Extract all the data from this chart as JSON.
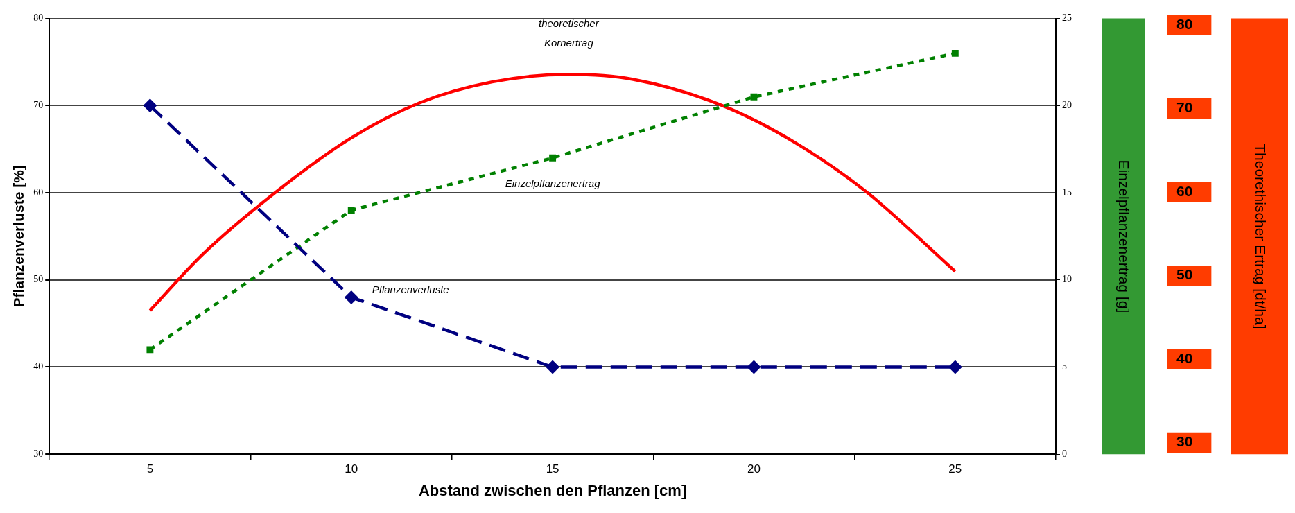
{
  "chart_data": {
    "type": "line",
    "xlabel": "Abstand zwischen den Pflanzen [cm]",
    "ylabel": "Pflanzenverluste [%]",
    "y2label": "Einzelpflanzenertrag [g]",
    "y3label": "Theorethischer Ertrag [dt/ha]",
    "xlim": [
      2.5,
      27.5
    ],
    "xticks": [
      {
        "value": 2.5,
        "label": null
      },
      5,
      {
        "value": 7.5,
        "label": null
      },
      10,
      {
        "value": 12.5,
        "label": null
      },
      15,
      {
        "value": 17.5,
        "label": null
      },
      20,
      {
        "value": 22.5,
        "label": null
      },
      25,
      {
        "value": 27.5,
        "label": null
      }
    ],
    "ylim": [
      30,
      80
    ],
    "yticks": [
      30,
      40,
      50,
      60,
      70,
      80
    ],
    "y2lim": [
      0,
      25
    ],
    "y2ticks": [
      0,
      5,
      10,
      15,
      20,
      25
    ],
    "y3lim": [
      28.6,
      80.8
    ],
    "y3ticks": [
      30,
      40,
      50,
      60,
      70,
      80
    ],
    "grid": "y",
    "legend": false,
    "series": [
      {
        "name": "Pflanzenverluste",
        "color": "#000080",
        "x": [
          5,
          10,
          15,
          20,
          25
        ],
        "values": [
          70,
          48,
          40,
          40,
          40
        ],
        "marker": "diamond",
        "line_style": "dashed"
      },
      {
        "name": "Einzelpflanzenertrag",
        "color": "#008000",
        "axis": "y2",
        "x": [
          5,
          10,
          15,
          20,
          25
        ],
        "values": [
          6,
          14,
          17,
          20.5,
          23
        ],
        "marker": "square",
        "line_style": "dotted"
      },
      {
        "name": "theoretischer Kornertrag",
        "color": "#ff0000",
        "axis": "y3",
        "x": [
          5,
          6.3,
          8.1,
          10,
          11.7,
          13.5,
          15.4,
          17,
          19.2,
          21,
          22.8,
          25
        ],
        "values": [
          45.8,
          52.5,
          59.9,
          66.5,
          70.7,
          73.2,
          74.1,
          73.5,
          70.4,
          66,
          60,
          50.5
        ],
        "marker": "none",
        "line_style": "solid"
      }
    ]
  }
}
